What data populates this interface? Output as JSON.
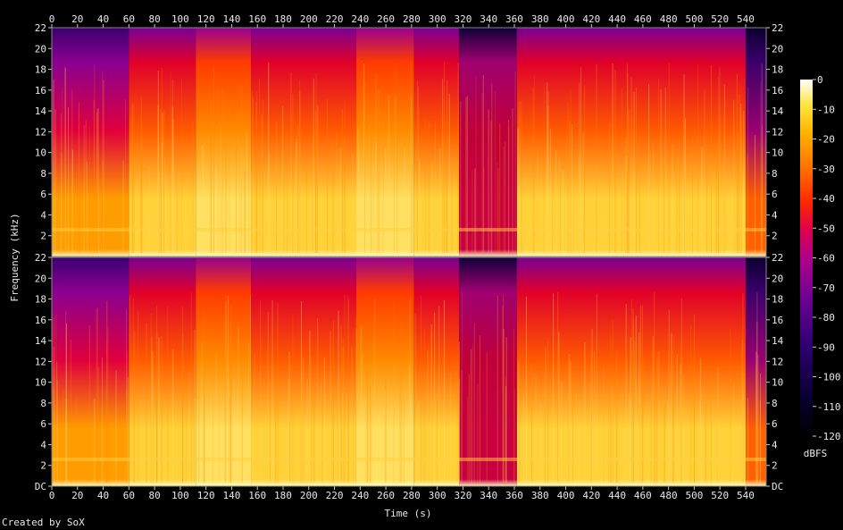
{
  "chart_data": {
    "type": "heatmap",
    "title": "",
    "xlabel": "Time (s)",
    "ylabel": "Frequency (kHz)",
    "xlim": [
      0,
      556
    ],
    "ylim": [
      0,
      22
    ],
    "x_ticks": [
      0,
      20,
      40,
      60,
      80,
      100,
      120,
      140,
      160,
      180,
      200,
      220,
      240,
      260,
      280,
      300,
      320,
      340,
      360,
      380,
      400,
      420,
      440,
      460,
      480,
      500,
      520,
      540
    ],
    "y_tick_labels": [
      "DC",
      "2",
      "4",
      "6",
      "8",
      "10",
      "12",
      "14",
      "16",
      "18",
      "20",
      "22"
    ],
    "channels": [
      "channel-1",
      "channel-2"
    ],
    "colorbar": {
      "label": "dBFS",
      "range": [
        -120,
        0
      ],
      "ticks": [
        "0",
        "-10",
        "-20",
        "-30",
        "-40",
        "-50",
        "-60",
        "-70",
        "-80",
        "-90",
        "-100",
        "-110",
        "-120"
      ],
      "top_label": "0"
    },
    "segments": [
      {
        "start": 0,
        "end": 60,
        "level": "quiet-intro"
      },
      {
        "start": 60,
        "end": 112,
        "level": "loud"
      },
      {
        "start": 112,
        "end": 155,
        "level": "loud-bright"
      },
      {
        "start": 155,
        "end": 237,
        "level": "loud"
      },
      {
        "start": 237,
        "end": 282,
        "level": "loud-bright"
      },
      {
        "start": 282,
        "end": 317,
        "level": "loud"
      },
      {
        "start": 317,
        "end": 362,
        "level": "quiet-break"
      },
      {
        "start": 362,
        "end": 540,
        "level": "loud"
      },
      {
        "start": 540,
        "end": 556,
        "level": "fade-out"
      }
    ]
  },
  "footer": {
    "credit": "Created by SoX"
  }
}
